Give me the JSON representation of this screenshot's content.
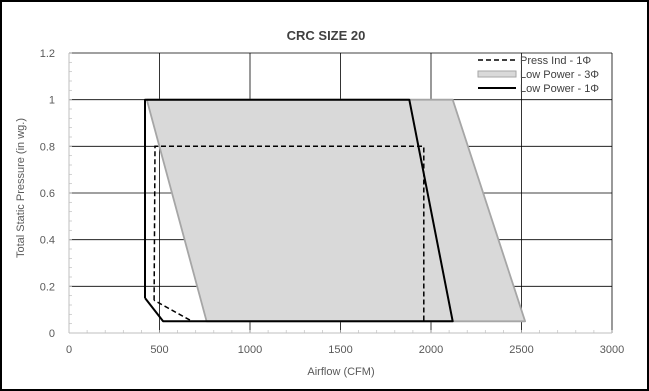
{
  "chart_data": {
    "type": "area",
    "title": "CRC SIZE 20",
    "xlabel": "Airflow (CFM)",
    "ylabel": "Total Static Pressure (in wg.)",
    "xlim": [
      0,
      3000
    ],
    "ylim": [
      0,
      1.2
    ],
    "xticks": [
      "0",
      "500",
      "1000",
      "1500",
      "2000",
      "2500",
      "3000"
    ],
    "yticks": [
      "0",
      "0.2",
      "0.4",
      "0.6",
      "0.8",
      "1",
      "1.2"
    ],
    "grid": true,
    "legend_position": "top-right",
    "series": [
      {
        "name": "Press Ind - 1Φ",
        "style": "dashed",
        "color": "#000000",
        "points": [
          [
            470,
            0.14
          ],
          [
            475,
            0.8
          ],
          [
            1960,
            0.8
          ],
          [
            1960,
            0.05
          ],
          [
            680,
            0.05
          ],
          [
            470,
            0.14
          ]
        ]
      },
      {
        "name": "Low Power - 3Φ",
        "style": "filled-area",
        "color": "#a6a6a6",
        "fill": "#d9d9d9",
        "points": [
          [
            430,
            1.0
          ],
          [
            2120,
            1.0
          ],
          [
            2520,
            0.05
          ],
          [
            760,
            0.05
          ],
          [
            430,
            1.0
          ]
        ]
      },
      {
        "name": "Low Power - 1Φ",
        "style": "solid",
        "color": "#000000",
        "points": [
          [
            420,
            0.15
          ],
          [
            420,
            1.0
          ],
          [
            1880,
            1.0
          ],
          [
            2120,
            0.05
          ],
          [
            520,
            0.05
          ],
          [
            420,
            0.15
          ]
        ]
      }
    ]
  }
}
